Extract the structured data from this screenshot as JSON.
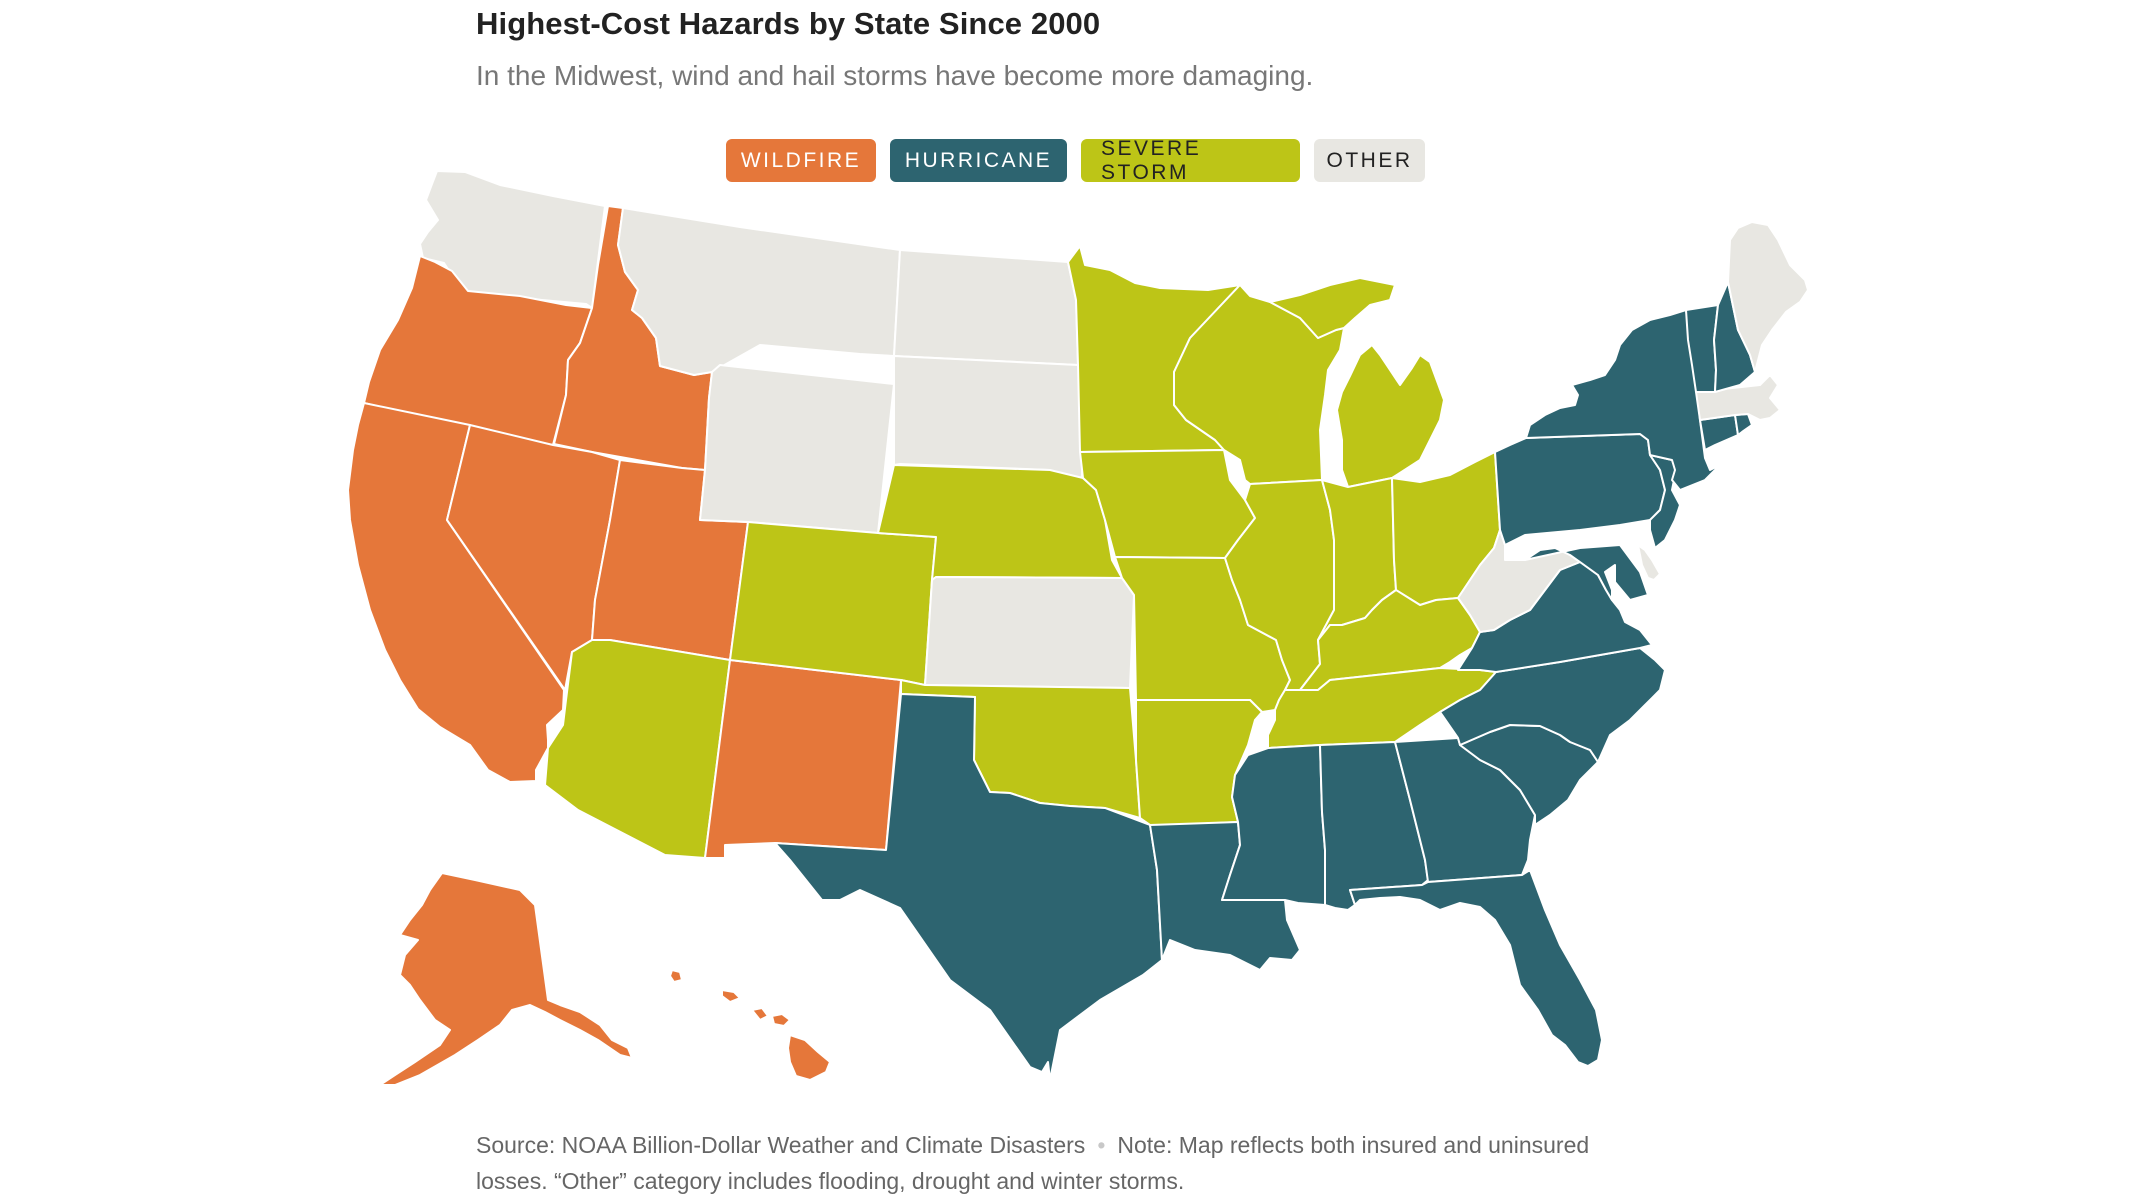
{
  "title": "Highest-Cost Hazards by State Since 2000",
  "subtitle": "In the Midwest, wind and hail storms have become more damaging.",
  "legend": [
    {
      "key": "wildfire",
      "label": "WILDFIRE",
      "color": "#e5773a",
      "text_color": "#ffffff"
    },
    {
      "key": "hurricane",
      "label": "HURRICANE",
      "color": "#2d6470",
      "text_color": "#ffffff"
    },
    {
      "key": "severe_storm",
      "label": "SEVERE STORM",
      "color": "#bdc517",
      "text_color": "#222222"
    },
    {
      "key": "other",
      "label": "OTHER",
      "color": "#e8e7e2",
      "text_color": "#222222"
    }
  ],
  "states": {
    "WA": "other",
    "OR": "wildfire",
    "CA": "wildfire",
    "ID": "wildfire",
    "NV": "wildfire",
    "UT": "wildfire",
    "AZ": "severe_storm",
    "NM": "wildfire",
    "MT": "other",
    "WY": "other",
    "CO": "severe_storm",
    "ND": "other",
    "SD": "other",
    "NE": "severe_storm",
    "KS": "other",
    "OK": "severe_storm",
    "TX": "hurricane",
    "MN": "severe_storm",
    "IA": "severe_storm",
    "MO": "severe_storm",
    "AR": "severe_storm",
    "LA": "hurricane",
    "WI": "severe_storm",
    "IL": "severe_storm",
    "MI": "severe_storm",
    "IN": "severe_storm",
    "OH": "severe_storm",
    "KY": "severe_storm",
    "TN": "severe_storm",
    "MS": "hurricane",
    "AL": "hurricane",
    "GA": "hurricane",
    "FL": "hurricane",
    "SC": "hurricane",
    "NC": "hurricane",
    "VA": "hurricane",
    "WV": "other",
    "MD": "hurricane",
    "DE": "other",
    "PA": "hurricane",
    "NJ": "hurricane",
    "NY": "hurricane",
    "CT": "hurricane",
    "RI": "hurricane",
    "MA": "other",
    "VT": "hurricane",
    "NH": "hurricane",
    "ME": "other",
    "AK": "wildfire",
    "HI": "wildfire"
  },
  "source": {
    "text": "Source: NOAA Billion-Dollar Weather and Climate Disasters",
    "separator": "•",
    "note": "Note: Map reflects both insured and uninsured losses. “Other” category includes flooding, drought and winter storms."
  }
}
